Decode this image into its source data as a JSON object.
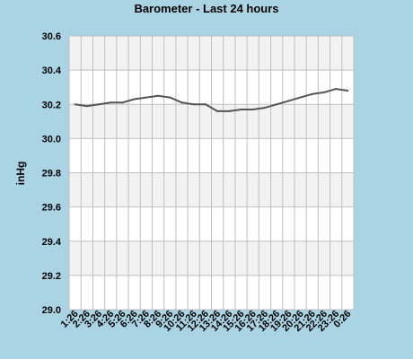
{
  "chart_data": {
    "type": "line",
    "title": "Barometer - Last 24 hours",
    "xlabel": "",
    "ylabel": "inHg",
    "ylim": [
      29.0,
      30.6
    ],
    "yticks": [
      "29.0",
      "29.2",
      "29.4",
      "29.6",
      "29.8",
      "30.0",
      "30.2",
      "30.4",
      "30.6"
    ],
    "categories": [
      "1:26",
      "2:26",
      "3:26",
      "4:26",
      "5:26",
      "6:26",
      "7:26",
      "8:26",
      "9:26",
      "10:26",
      "11:26",
      "12:26",
      "13:26",
      "14:26",
      "15:26",
      "16:26",
      "17:26",
      "18:26",
      "19:26",
      "20:26",
      "21:26",
      "22:26",
      "23:26",
      "0:26"
    ],
    "grid": true,
    "series": [
      {
        "name": "",
        "values": [
          30.2,
          30.19,
          30.2,
          30.21,
          30.21,
          30.23,
          30.24,
          30.25,
          30.24,
          30.21,
          30.2,
          30.2,
          30.16,
          30.16,
          30.17,
          30.17,
          30.18,
          30.2,
          30.22,
          30.24,
          30.26,
          30.27,
          30.29,
          30.28
        ]
      }
    ],
    "colors": {
      "background": "#aad4e4",
      "plot": "#ffffff",
      "band": "#f2f2f2",
      "grid": "#bfbfbf",
      "line": "#555555"
    }
  }
}
